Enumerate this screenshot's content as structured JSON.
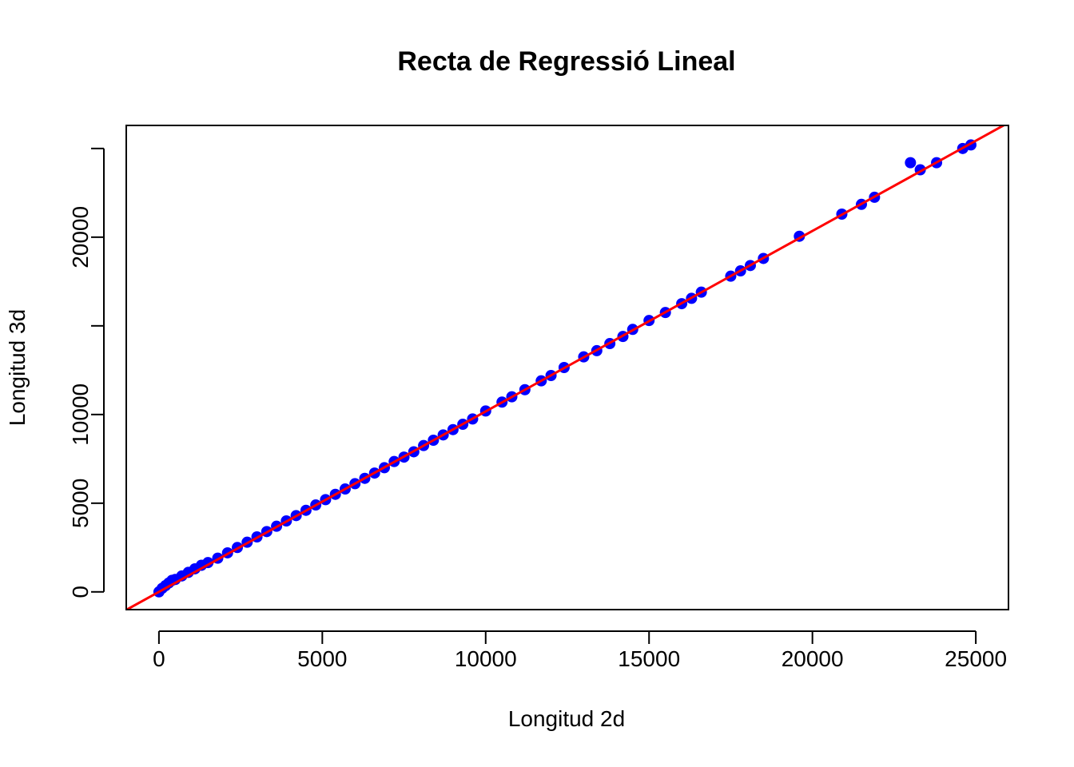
{
  "chart_data": {
    "type": "scatter",
    "title": "Recta de Regressió Lineal",
    "xlabel": "Longitud 2d",
    "ylabel": "Longitud 3d",
    "xlim": [
      -1000,
      26000
    ],
    "ylim": [
      -1000,
      26300
    ],
    "x_ticks": [
      0,
      5000,
      10000,
      15000,
      20000,
      25000
    ],
    "x_tick_labels": [
      "0",
      "5000",
      "10000",
      "15000",
      "20000",
      "25000"
    ],
    "y_ticks": [
      0,
      5000,
      10000,
      15000,
      20000,
      25000
    ],
    "y_tick_labels": [
      "0",
      "5000",
      "10000",
      "",
      "20000",
      ""
    ],
    "grid": false,
    "point_color": "#0000ff",
    "line_color": "#ff0000",
    "regression": {
      "intercept": 0,
      "slope": 1.0175
    },
    "series": [
      {
        "x": [
          0,
          100,
          200,
          300,
          400,
          500,
          700,
          900,
          1100,
          1300,
          1500,
          1800,
          2100,
          2400,
          2700,
          3000,
          3300,
          3600,
          3900,
          4200,
          4500,
          4800,
          5100,
          5400,
          5700,
          6000,
          6300,
          6600,
          6900,
          7200,
          7500,
          7800,
          8100,
          8400,
          8700,
          9000,
          9300,
          9600,
          10000,
          10500,
          10800,
          11200,
          11700,
          12000,
          12400,
          13000,
          13400,
          13800,
          14200,
          14500,
          15000,
          15500,
          16000,
          16300,
          16600,
          17500,
          17800,
          18100,
          18500,
          19600,
          20900,
          21500,
          21900,
          23000,
          23300,
          23800,
          24600,
          24850
        ],
        "y": [
          0,
          200,
          350,
          500,
          650,
          700,
          900,
          1100,
          1300,
          1500,
          1650,
          1900,
          2200,
          2500,
          2800,
          3100,
          3400,
          3700,
          4000,
          4300,
          4600,
          4900,
          5200,
          5500,
          5800,
          6100,
          6400,
          6700,
          7000,
          7350,
          7600,
          7900,
          8250,
          8550,
          8850,
          9150,
          9450,
          9750,
          10200,
          10700,
          11000,
          11400,
          11900,
          12200,
          12650,
          13250,
          13600,
          14000,
          14400,
          14800,
          15300,
          15750,
          16250,
          16550,
          16900,
          17800,
          18100,
          18400,
          18800,
          20050,
          21300,
          21850,
          22250,
          24200,
          23800,
          24200,
          25000,
          25200
        ]
      }
    ]
  }
}
